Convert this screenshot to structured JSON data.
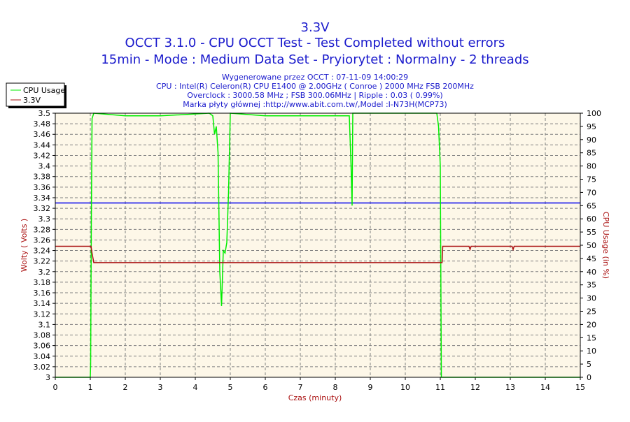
{
  "chart_data": {
    "type": "line",
    "title": "3.3V",
    "subtitle1": "OCCT 3.1.0 - CPU OCCT Test - Test Completed without errors",
    "subtitle2": "15min - Mode : Medium Data Set - Pryiorytet : Normalny - 2 threads",
    "info": [
      "Wygenerowane przez OCCT : 07-11-09 14:00:29",
      "CPU : Intel(R) Celeron(R) CPU E1400 @ 2.00GHz ( Conroe ) 2000 MHz FSB 200MHz",
      "Overclock : 3000.58 MHz ; FSB 300.06MHz | Ripple : 0.03 ( 0.99%)",
      "Marka płyty głównej :http://www.abit.com.tw/,Model :I-N73H(MCP73)"
    ],
    "xlabel": "Czas (minuty)",
    "ylabel": "Wolty ( Volts )",
    "y2label": "CPU Usage (in %)",
    "xlim": [
      0,
      15
    ],
    "ylim": [
      3.0,
      3.5
    ],
    "y2lim": [
      0,
      100
    ],
    "xticks": [
      "0",
      "1",
      "2",
      "3",
      "4",
      "5",
      "6",
      "7",
      "8",
      "9",
      "10",
      "11",
      "12",
      "13",
      "14",
      "15"
    ],
    "yticks": [
      "3",
      "3.02",
      "3.04",
      "3.06",
      "3.08",
      "3.1",
      "3.12",
      "3.14",
      "3.16",
      "3.18",
      "3.2",
      "3.22",
      "3.24",
      "3.26",
      "3.28",
      "3.3",
      "3.32",
      "3.34",
      "3.36",
      "3.38",
      "3.4",
      "3.42",
      "3.44",
      "3.46",
      "3.48",
      "3.5"
    ],
    "y2ticks": [
      "0",
      "5",
      "10",
      "15",
      "20",
      "25",
      "30",
      "35",
      "40",
      "45",
      "50",
      "55",
      "60",
      "65",
      "70",
      "75",
      "80",
      "85",
      "90",
      "95",
      "100"
    ],
    "legend": {
      "position": "top-left",
      "entries": [
        "CPU Usage",
        "3.3V"
      ]
    },
    "reference_line": 3.33,
    "series": [
      {
        "name": "CPU Usage",
        "axis": "right",
        "color": "#00ee00",
        "points": [
          [
            0,
            0
          ],
          [
            1.0,
            0
          ],
          [
            1.01,
            5
          ],
          [
            1.03,
            60
          ],
          [
            1.05,
            98
          ],
          [
            1.1,
            100
          ],
          [
            2.0,
            99
          ],
          [
            3.0,
            99
          ],
          [
            4.4,
            100
          ],
          [
            4.5,
            99
          ],
          [
            4.55,
            92
          ],
          [
            4.6,
            95
          ],
          [
            4.65,
            85
          ],
          [
            4.7,
            40
          ],
          [
            4.75,
            27
          ],
          [
            4.8,
            48
          ],
          [
            4.85,
            47
          ],
          [
            4.9,
            51
          ],
          [
            4.95,
            70
          ],
          [
            5.0,
            100
          ],
          [
            6.0,
            99
          ],
          [
            8.4,
            99
          ],
          [
            8.45,
            80
          ],
          [
            8.48,
            65
          ],
          [
            8.5,
            100
          ],
          [
            10.9,
            100
          ],
          [
            10.95,
            95
          ],
          [
            11.0,
            80
          ],
          [
            11.03,
            0
          ],
          [
            15,
            0
          ]
        ]
      },
      {
        "name": "3.3V",
        "axis": "left",
        "color": "#aa1111",
        "points": [
          [
            0,
            3.248
          ],
          [
            1.02,
            3.248
          ],
          [
            1.05,
            3.235
          ],
          [
            1.1,
            3.217
          ],
          [
            11.05,
            3.217
          ],
          [
            11.07,
            3.248
          ],
          [
            11.82,
            3.248
          ],
          [
            11.85,
            3.242
          ],
          [
            11.88,
            3.248
          ],
          [
            13.05,
            3.248
          ],
          [
            13.08,
            3.242
          ],
          [
            13.11,
            3.248
          ],
          [
            15,
            3.248
          ]
        ]
      }
    ]
  }
}
